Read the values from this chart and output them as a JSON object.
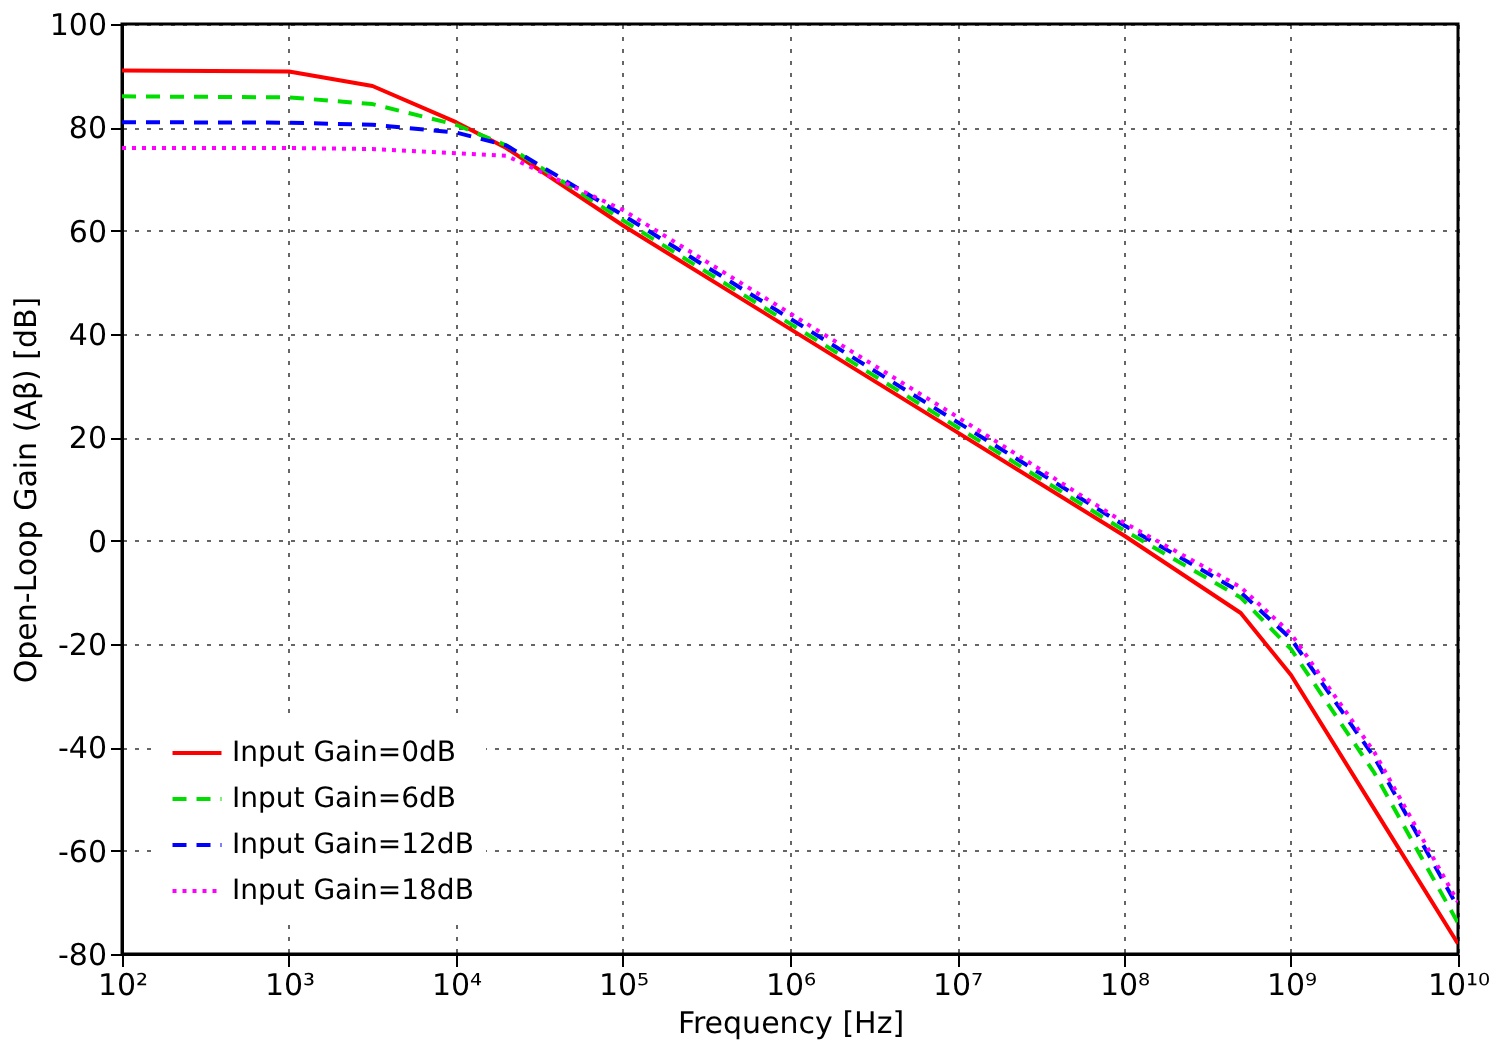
{
  "chart_data": {
    "type": "line",
    "xlabel": "Frequency [Hz]",
    "ylabel": "Open-Loop Gain (Aβ) [dB]",
    "log": "x",
    "grid": true,
    "legend": "bottom left",
    "xlim": [
      100,
      10000000000
    ],
    "ylim": [
      -80,
      100
    ],
    "xticks": [
      {
        "value": 100,
        "label": "10²"
      },
      {
        "value": 1000,
        "label": "10³"
      },
      {
        "value": 10000,
        "label": "10⁴"
      },
      {
        "value": 100000,
        "label": "10⁵"
      },
      {
        "value": 1000000,
        "label": "10⁶"
      },
      {
        "value": 10000000,
        "label": "10⁷"
      },
      {
        "value": 100000000,
        "label": "10⁸"
      },
      {
        "value": 1000000000,
        "label": "10⁹"
      },
      {
        "value": 10000000000,
        "label": "10¹⁰"
      }
    ],
    "yticks": [
      -80,
      -60,
      -40,
      -20,
      0,
      20,
      40,
      60,
      80,
      100
    ],
    "x": [
      100,
      1000,
      3162,
      10000,
      20000,
      100000,
      1000000,
      10000000,
      100000000,
      500000000,
      1000000000,
      3162000000,
      10000000000
    ],
    "series": [
      {
        "name": "Input Gain=0dB",
        "color": "#ff0000",
        "line_style": "solid",
        "values": [
          91,
          90.8,
          88,
          81,
          76,
          61,
          41,
          21,
          1,
          -14,
          -26,
          -52,
          -78
        ]
      },
      {
        "name": "Input Gain=6dB",
        "color": "#00dd00",
        "line_style": "dashed",
        "values": [
          86,
          85.8,
          84.5,
          80.5,
          76.5,
          62,
          42,
          22,
          2,
          -11,
          -21,
          -45,
          -74
        ]
      },
      {
        "name": "Input Gain=12dB",
        "color": "#0000ff",
        "line_style": "dashed",
        "values": [
          81,
          80.9,
          80.5,
          79,
          76.5,
          63,
          43,
          23,
          3,
          -10,
          -19,
          -42,
          -71
        ]
      },
      {
        "name": "Input Gain=18dB",
        "color": "#ff00ff",
        "line_style": "dotted",
        "values": [
          76,
          76,
          75.8,
          75,
          74.5,
          64,
          44,
          24,
          3.5,
          -9,
          -18,
          -41,
          -70
        ]
      }
    ]
  }
}
